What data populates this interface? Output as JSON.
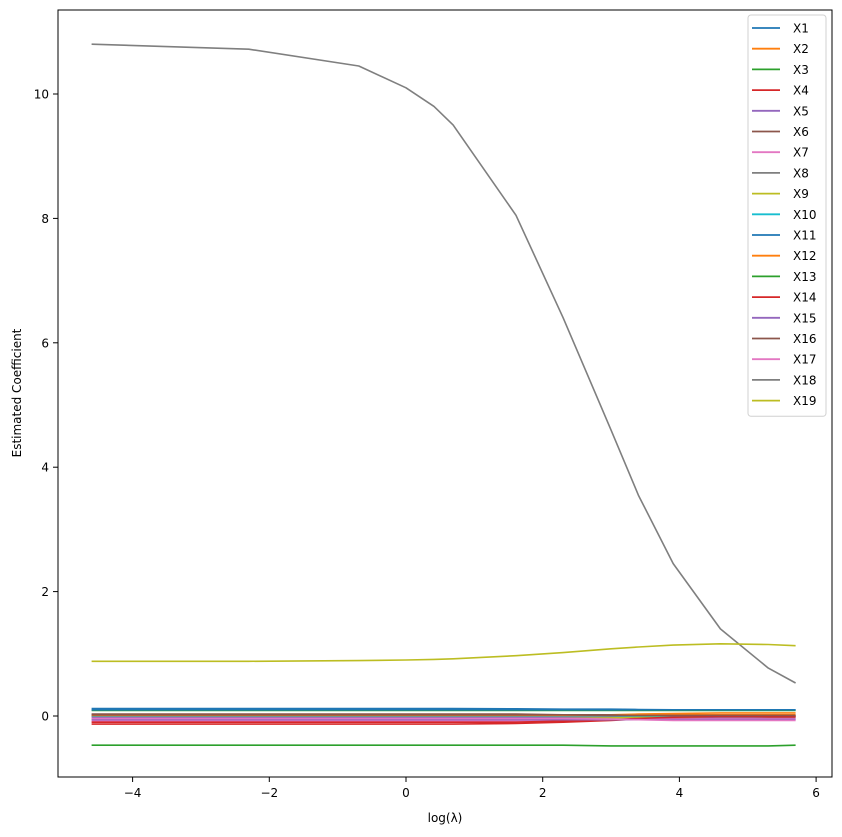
{
  "chart_data": {
    "type": "line",
    "title": "",
    "xlabel": "log(λ)",
    "ylabel": "Estimated Coefficient",
    "xlim": [
      -5.1,
      6.2
    ],
    "ylim": [
      -1.0,
      11.3
    ],
    "xticks": [
      -4,
      -2,
      0,
      2,
      4,
      6
    ],
    "xtick_labels": [
      "−4",
      "−2",
      "0",
      "2",
      "4",
      "6"
    ],
    "yticks": [
      0,
      2,
      4,
      6,
      8,
      10
    ],
    "ytick_labels": [
      "0",
      "2",
      "4",
      "6",
      "8",
      "10"
    ],
    "grid": false,
    "legend_position": "upper right",
    "x": [
      -4.6,
      -2.3,
      -0.69,
      0.0,
      0.41,
      0.69,
      1.61,
      2.3,
      3.0,
      3.4,
      3.91,
      4.6,
      5.3,
      5.7
    ],
    "series": [
      {
        "name": "X1",
        "color": "#1f77b4",
        "values": [
          0.12,
          0.12,
          0.12,
          0.12,
          0.12,
          0.12,
          0.115,
          0.11,
          0.11,
          0.105,
          0.1,
          0.1,
          0.1,
          0.1
        ]
      },
      {
        "name": "X2",
        "color": "#ff7f0e",
        "values": [
          0.0,
          0.0,
          0.0,
          0.0,
          0.0,
          0.0,
          0.0,
          0.01,
          0.02,
          0.03,
          0.04,
          0.05,
          0.05,
          0.05
        ]
      },
      {
        "name": "X3",
        "color": "#2ca02c",
        "values": [
          0.09,
          0.09,
          0.09,
          0.09,
          0.09,
          0.09,
          0.09,
          0.09,
          0.09,
          0.09,
          0.09,
          0.09,
          0.09,
          0.09
        ]
      },
      {
        "name": "X4",
        "color": "#d62728",
        "values": [
          -0.13,
          -0.13,
          -0.13,
          -0.13,
          -0.13,
          -0.13,
          -0.12,
          -0.1,
          -0.07,
          -0.05,
          -0.03,
          -0.02,
          -0.02,
          -0.02
        ]
      },
      {
        "name": "X5",
        "color": "#9467bd",
        "values": [
          -0.02,
          -0.02,
          -0.02,
          -0.02,
          -0.02,
          -0.02,
          -0.02,
          -0.02,
          -0.02,
          -0.02,
          -0.02,
          -0.03,
          -0.04,
          -0.04
        ]
      },
      {
        "name": "X6",
        "color": "#8c564b",
        "values": [
          0.03,
          0.03,
          0.03,
          0.03,
          0.03,
          0.03,
          0.03,
          0.02,
          0.02,
          0.01,
          0.01,
          0.0,
          0.0,
          0.0
        ]
      },
      {
        "name": "X7",
        "color": "#e377c2",
        "values": [
          -0.08,
          -0.08,
          -0.08,
          -0.08,
          -0.08,
          -0.08,
          -0.08,
          -0.07,
          -0.06,
          -0.05,
          -0.05,
          -0.05,
          -0.05,
          -0.05
        ]
      },
      {
        "name": "X8",
        "color": "#7f7f7f",
        "values": [
          0.0,
          0.0,
          0.0,
          0.0,
          0.0,
          0.0,
          0.0,
          0.0,
          0.0,
          0.0,
          0.0,
          0.0,
          0.0,
          0.0
        ]
      },
      {
        "name": "X9",
        "color": "#bcbd22",
        "values": [
          -0.05,
          -0.05,
          -0.05,
          -0.05,
          -0.05,
          -0.05,
          -0.05,
          -0.04,
          -0.03,
          -0.02,
          -0.02,
          -0.01,
          -0.01,
          -0.01
        ]
      },
      {
        "name": "X10",
        "color": "#17becf",
        "values": [
          0.0,
          0.0,
          0.0,
          0.0,
          0.0,
          0.0,
          0.0,
          0.0,
          0.0,
          0.0,
          0.0,
          0.0,
          0.0,
          0.0
        ]
      },
      {
        "name": "X11",
        "color": "#1f77b4",
        "values": [
          0.1,
          0.1,
          0.1,
          0.1,
          0.1,
          0.1,
          0.1,
          0.1,
          0.1,
          0.1,
          0.1,
          0.1,
          0.1,
          0.1
        ]
      },
      {
        "name": "X12",
        "color": "#ff7f0e",
        "values": [
          0.01,
          0.01,
          0.01,
          0.01,
          0.01,
          0.01,
          0.01,
          0.01,
          0.01,
          0.02,
          0.02,
          0.02,
          0.02,
          0.02
        ]
      },
      {
        "name": "X13",
        "color": "#2ca02c",
        "values": [
          -0.47,
          -0.47,
          -0.47,
          -0.47,
          -0.47,
          -0.47,
          -0.47,
          -0.47,
          -0.48,
          -0.48,
          -0.48,
          -0.48,
          -0.48,
          -0.47
        ]
      },
      {
        "name": "X14",
        "color": "#d62728",
        "values": [
          -0.1,
          -0.1,
          -0.1,
          -0.1,
          -0.1,
          -0.1,
          -0.1,
          -0.08,
          -0.06,
          -0.04,
          -0.02,
          -0.01,
          -0.01,
          -0.01
        ]
      },
      {
        "name": "X15",
        "color": "#9467bd",
        "values": [
          -0.06,
          -0.06,
          -0.06,
          -0.06,
          -0.06,
          -0.06,
          -0.06,
          -0.06,
          -0.06,
          -0.06,
          -0.06,
          -0.06,
          -0.06,
          -0.06
        ]
      },
      {
        "name": "X16",
        "color": "#8c564b",
        "values": [
          0.02,
          0.02,
          0.02,
          0.02,
          0.02,
          0.02,
          0.02,
          0.02,
          0.01,
          0.01,
          0.01,
          0.01,
          0.01,
          0.01
        ]
      },
      {
        "name": "X17",
        "color": "#e377c2",
        "values": [
          -0.04,
          -0.04,
          -0.04,
          -0.04,
          -0.04,
          -0.04,
          -0.04,
          -0.04,
          -0.05,
          -0.06,
          -0.07,
          -0.07,
          -0.07,
          -0.07
        ]
      },
      {
        "name": "X18",
        "color": "#7f7f7f",
        "values": [
          10.8,
          10.72,
          10.45,
          10.1,
          9.8,
          9.5,
          8.05,
          6.4,
          4.6,
          3.55,
          2.45,
          1.4,
          0.77,
          0.53
        ]
      },
      {
        "name": "X19",
        "color": "#bcbd22",
        "values": [
          0.88,
          0.88,
          0.89,
          0.9,
          0.91,
          0.92,
          0.97,
          1.02,
          1.08,
          1.11,
          1.14,
          1.16,
          1.15,
          1.13
        ]
      }
    ]
  }
}
